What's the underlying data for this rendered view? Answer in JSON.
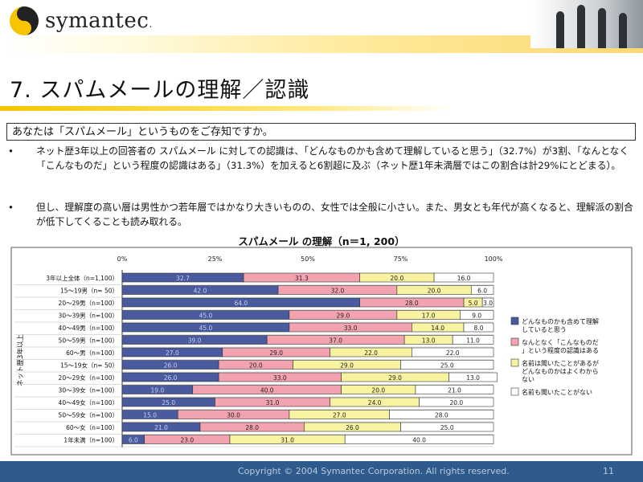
{
  "brand": {
    "name": "symantec",
    "suffix": "."
  },
  "slide_title": "7. スパムメールの理解／認識",
  "question": "あなたは「スパムメール」というものをご存知ですか。",
  "bullets": [
    "ネット歴3年以上の回答者の スパムメール に対しての認識は、「どんなものかも含めて理解していると思う」（32.7%）が3割、「なんとなく「こんなものだ」という程度の認識はある」（31.3%）を加えると6割超に及ぶ（ネット歴1年未満層ではこの割合は計29%にとどまる）。",
    "但し、理解度の高い層は男性かつ若年層ではかなり大きいものの、女性では全般に小さい。また、男女とも年代が高くなると、理解派の割合が低下してくることも読み取れる。"
  ],
  "footer": {
    "copyright": "Copyright © 2004 Symantec Corporation. All rights reserved.",
    "page": "11"
  },
  "chart_data": {
    "type": "bar",
    "orientation": "horizontal",
    "stacked": true,
    "title": "スパムメール の理解（n＝1, 200）",
    "x_ticks": [
      "0%",
      "25%",
      "50%",
      "75%",
      "100%"
    ],
    "xlim": [
      0,
      100
    ],
    "group_label": "ネット歴3年以上",
    "categories": [
      "3年以上全体（n=1,100）",
      "15〜19男（n= 50）",
      "20〜29男（n=100）",
      "30〜39男（n=100）",
      "40〜49男（n=100）",
      "50〜59男（n=100）",
      "60〜男（n=100）",
      "15〜19女（n= 50）",
      "20〜29女（n=100）",
      "30〜39女（n=100）",
      "40〜49女（n=100）",
      "50〜59女（n=100）",
      "60〜女（n=100）",
      "1年未満（n=100）"
    ],
    "series": [
      {
        "name": "どんなものかも含めて理解していると思う",
        "color": "#4a5a9e",
        "values": [
          32.7,
          42.0,
          64.0,
          45.0,
          45.0,
          39.0,
          27.0,
          26.0,
          26.0,
          19.0,
          25.0,
          15.0,
          21.0,
          6.0
        ]
      },
      {
        "name": "なんとなく「こんなものだ」という程度の認識はある",
        "color": "#f3a3b0",
        "values": [
          31.3,
          32.0,
          28.0,
          29.0,
          33.0,
          37.0,
          29.0,
          20.0,
          33.0,
          40.0,
          31.0,
          30.0,
          28.0,
          23.0
        ]
      },
      {
        "name": "名前は聞いたことがあるがどんなものかはよくわからない",
        "color": "#f8f3a0",
        "values": [
          20.0,
          20.0,
          5.0,
          17.0,
          14.0,
          13.0,
          22.0,
          29.0,
          29.0,
          20.0,
          24.0,
          27.0,
          26.0,
          31.0
        ]
      },
      {
        "name": "名前も聞いたことがない",
        "color": "#ffffff",
        "values": [
          16.0,
          6.0,
          3.0,
          9.0,
          8.0,
          11.0,
          22.0,
          25.0,
          13.0,
          21.0,
          20.0,
          28.0,
          25.0,
          40.0
        ]
      }
    ],
    "legend_position": "right",
    "grid": false
  }
}
